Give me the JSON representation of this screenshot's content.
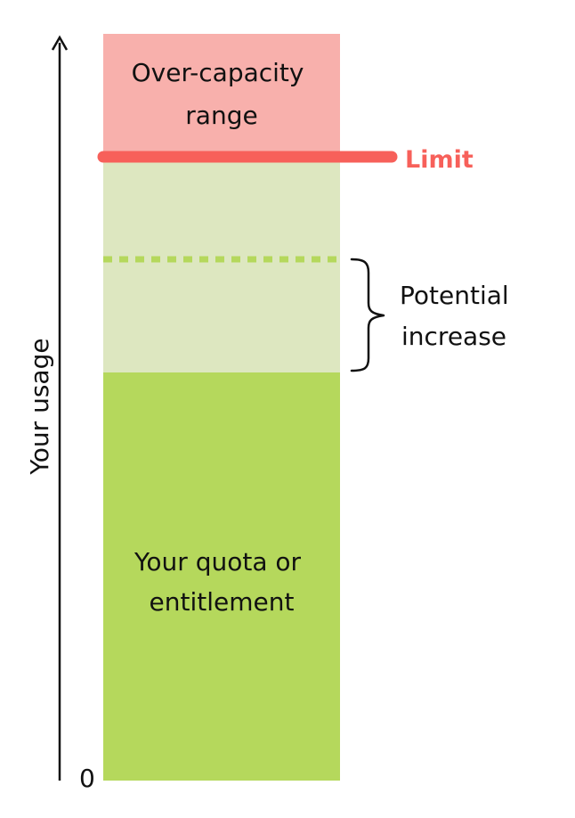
{
  "axis": {
    "label": "Your usage",
    "origin_label": "0"
  },
  "regions": {
    "over_capacity": "Over-capacity range",
    "over_capacity_line1": "Over-capacity",
    "over_capacity_line2": "range",
    "quota": "Your quota or entitlement",
    "quota_line1": "Your quota or",
    "quota_line2": "entitlement"
  },
  "limit": {
    "label": "Limit"
  },
  "potential": {
    "label": "Potential increase",
    "line1": "Potential",
    "line2": "increase"
  },
  "colors": {
    "over_capacity": "#f8b0ac",
    "limit": "#f7605a",
    "potential": "#dde7c0",
    "quota": "#b5d85c",
    "dotted": "#b5d85c",
    "axis": "#111111"
  }
}
